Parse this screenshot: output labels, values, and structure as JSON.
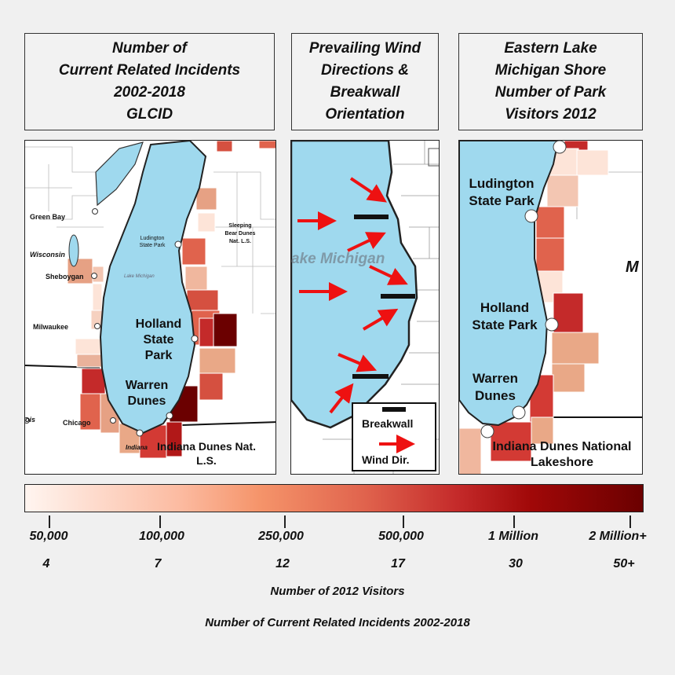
{
  "titles": {
    "left": [
      "Number of",
      "Current Related Incidents",
      "2002-2018",
      "GLCID"
    ],
    "middle": [
      "Prevailing Wind",
      "Directions &",
      "Breakwall",
      "Orientation"
    ],
    "right": [
      "Eastern Lake",
      "Michigan Shore",
      "Number of Park",
      "Visitors 2012"
    ]
  },
  "left_map": {
    "green_bay": "Green Bay",
    "wisconsin": "Wisconsin",
    "sheboygan": "Sheboygan",
    "milwaukee": "Milwaukee",
    "chicago": "Chicago",
    "illinois": "ois",
    "ludington": "Ludington State Park",
    "sleeping_bear": "Sleeping Bear Dunes Nat. L.S.",
    "lake_michigan": "Lake Michigan",
    "holland": "Holland State Park",
    "warren": "Warren Dunes",
    "indiana": "Indiana",
    "indiana_dunes": "Indiana Dunes Nat. L.S."
  },
  "middle_map": {
    "lake_label": "ake Michigan",
    "legend_breakwall": "Breakwall",
    "legend_wind": "Wind Dir."
  },
  "right_map": {
    "ludington": "Ludington State Park",
    "holland": "Holland State Park",
    "warren": "Warren Dunes",
    "indiana_dunes": "Indiana Dunes National Lakeshore",
    "michigan_partial": "M"
  },
  "colorbar": {
    "visitor_ticks": [
      "50,000",
      "100,000",
      "250,000",
      "500,000",
      "1 Million",
      "2 Million+"
    ],
    "incident_ticks": [
      "4",
      "7",
      "12",
      "17",
      "30",
      "50+"
    ],
    "colors": [
      "#fff5f0",
      "#fcbba1",
      "#f5946a",
      "#e0634d",
      "#c42a2a",
      "#a00808",
      "#6b0000"
    ]
  },
  "captions": {
    "visitors": "Number of 2012 Visitors",
    "incidents": "Number of Current Related Incidents 2002-2018"
  },
  "colors": {
    "lake": "#9fd9ee",
    "arrow": "#ee1111"
  }
}
